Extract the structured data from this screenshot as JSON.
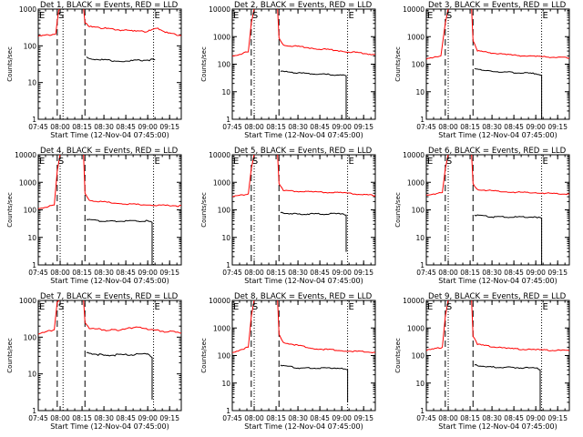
{
  "chart_data": [
    {
      "type": "line",
      "title": "Det 1, BLACK = Events, RED = LLD",
      "xlabel": "Start Time (12-Nov-04 07:45:00)",
      "ylabel": "Counts/sec",
      "y_scale": "log",
      "ylim": [
        1,
        1000
      ],
      "y_ticks": [
        "1",
        "10",
        "100",
        "1000"
      ],
      "x_ticks": [
        "07:45",
        "08:00",
        "08:15",
        "08:30",
        "08:45",
        "09:00",
        "09:15"
      ],
      "xlim": [
        "07:45",
        "09:23"
      ],
      "markers": [
        {
          "label": "E",
          "time": "07:45"
        },
        {
          "label": "S",
          "time": "07:58"
        },
        {
          "label": "E",
          "time": "09:04"
        }
      ],
      "dashed_lines": [
        "07:58",
        "08:17"
      ],
      "dotted_lines": [
        "08:02",
        "09:04"
      ],
      "series": [
        {
          "color": "#ff0000",
          "points": [
            [
              "07:45",
              180
            ],
            [
              "07:57",
              210
            ],
            [
              "07:59",
              900
            ],
            [
              "08:00",
              1200
            ],
            [
              "08:16",
              1200
            ],
            [
              "08:17",
              420
            ],
            [
              "08:20",
              330
            ],
            [
              "08:30",
              300
            ],
            [
              "08:50",
              250
            ],
            [
              "09:00",
              245
            ],
            [
              "09:06",
              300
            ],
            [
              "09:12",
              230
            ],
            [
              "09:23",
              190
            ]
          ]
        },
        {
          "color": "#000000",
          "points": [
            [
              "08:18",
              50
            ],
            [
              "08:20",
              45
            ],
            [
              "08:40",
              38
            ],
            [
              "09:05",
              42
            ]
          ]
        }
      ]
    },
    {
      "type": "line",
      "title": "Det 2, BLACK = Events, RED = LLD",
      "xlabel": "Start Time (12-Nov-04 07:45:00)",
      "ylabel": "Counts/sec",
      "y_scale": "log",
      "ylim": [
        1,
        10000
      ],
      "y_ticks": [
        "1",
        "10",
        "100",
        "1000",
        "10000"
      ],
      "x_ticks": [
        "07:45",
        "08:00",
        "08:15",
        "08:30",
        "08:45",
        "09:00",
        "09:15"
      ],
      "xlim": [
        "07:45",
        "09:23"
      ],
      "markers": [
        {
          "label": "E",
          "time": "07:45"
        },
        {
          "label": "S",
          "time": "07:58"
        },
        {
          "label": "E",
          "time": "09:04"
        }
      ],
      "dashed_lines": [
        "07:58",
        "08:17"
      ],
      "dotted_lines": [
        "08:00",
        "09:04"
      ],
      "series": [
        {
          "color": "#ff0000",
          "points": [
            [
              "07:45",
              200
            ],
            [
              "07:56",
              280
            ],
            [
              "07:58",
              3000
            ],
            [
              "08:00",
              12000
            ],
            [
              "08:16",
              12000
            ],
            [
              "08:17",
              900
            ],
            [
              "08:20",
              500
            ],
            [
              "08:40",
              380
            ],
            [
              "09:00",
              300
            ],
            [
              "09:23",
              220
            ]
          ]
        },
        {
          "color": "#000000",
          "points": [
            [
              "08:18",
              55
            ],
            [
              "08:30",
              48
            ],
            [
              "09:00",
              40
            ],
            [
              "09:03",
              38
            ],
            [
              "09:03",
              1
            ]
          ]
        }
      ]
    },
    {
      "type": "line",
      "title": "Det 3, BLACK = Events, RED = LLD",
      "xlabel": "Start Time (12-Nov-04 07:45:00)",
      "ylabel": "Counts/sec",
      "y_scale": "log",
      "ylim": [
        1,
        10000
      ],
      "y_ticks": [
        "1",
        "10",
        "100",
        "1000",
        "10000"
      ],
      "x_ticks": [
        "07:45",
        "08:00",
        "08:15",
        "08:30",
        "08:45",
        "09:00",
        "09:15"
      ],
      "xlim": [
        "07:45",
        "09:23"
      ],
      "markers": [
        {
          "label": "E",
          "time": "07:45"
        },
        {
          "label": "S",
          "time": "07:58"
        },
        {
          "label": "E",
          "time": "09:04"
        }
      ],
      "dashed_lines": [
        "07:58",
        "08:17"
      ],
      "dotted_lines": [
        "08:00",
        "09:04"
      ],
      "series": [
        {
          "color": "#ff0000",
          "points": [
            [
              "07:45",
              150
            ],
            [
              "07:55",
              200
            ],
            [
              "07:58",
              3000
            ],
            [
              "08:00",
              12000
            ],
            [
              "08:16",
              12000
            ],
            [
              "08:17",
              700
            ],
            [
              "08:20",
              300
            ],
            [
              "08:40",
              220
            ],
            [
              "09:00",
              190
            ],
            [
              "09:23",
              170
            ]
          ]
        },
        {
          "color": "#000000",
          "points": [
            [
              "08:18",
              70
            ],
            [
              "08:30",
              55
            ],
            [
              "09:00",
              45
            ],
            [
              "09:04",
              40
            ],
            [
              "09:04",
              1
            ]
          ]
        }
      ]
    },
    {
      "type": "line",
      "title": "Det 4, BLACK = Events, RED = LLD",
      "xlabel": "Start Time (12-Nov-04 07:45:00)",
      "ylabel": "Counts/sec",
      "y_scale": "log",
      "ylim": [
        1,
        10000
      ],
      "y_ticks": [
        "1",
        "10",
        "100",
        "1000",
        "10000"
      ],
      "x_ticks": [
        "07:45",
        "08:00",
        "08:15",
        "08:30",
        "08:45",
        "09:00",
        "09:15"
      ],
      "xlim": [
        "07:45",
        "09:23"
      ],
      "markers": [
        {
          "label": "E",
          "time": "07:45"
        },
        {
          "label": "S",
          "time": "07:58"
        },
        {
          "label": "E",
          "time": "09:04"
        }
      ],
      "dashed_lines": [
        "07:58",
        "08:17"
      ],
      "dotted_lines": [
        "08:00",
        "09:04"
      ],
      "series": [
        {
          "color": "#ff0000",
          "points": [
            [
              "07:45",
              110
            ],
            [
              "07:56",
              150
            ],
            [
              "07:58",
              2500
            ],
            [
              "08:00",
              12000
            ],
            [
              "08:16",
              12000
            ],
            [
              "08:17",
              400
            ],
            [
              "08:20",
              220
            ],
            [
              "08:40",
              170
            ],
            [
              "09:00",
              150
            ],
            [
              "09:23",
              140
            ]
          ]
        },
        {
          "color": "#000000",
          "points": [
            [
              "08:18",
              45
            ],
            [
              "08:30",
              38
            ],
            [
              "09:00",
              40
            ],
            [
              "09:03",
              35
            ],
            [
              "09:03",
              1
            ]
          ]
        }
      ]
    },
    {
      "type": "line",
      "title": "Det 5, BLACK = Events, RED = LLD",
      "xlabel": "Start Time (12-Nov-04 07:45:00)",
      "ylabel": "Counts/sec",
      "y_scale": "log",
      "ylim": [
        1,
        10000
      ],
      "y_ticks": [
        "1",
        "10",
        "100",
        "1000",
        "10000"
      ],
      "x_ticks": [
        "07:45",
        "08:00",
        "08:15",
        "08:30",
        "08:45",
        "09:00",
        "09:15"
      ],
      "xlim": [
        "07:45",
        "09:23"
      ],
      "markers": [
        {
          "label": "E",
          "time": "07:45"
        },
        {
          "label": "S",
          "time": "07:58"
        },
        {
          "label": "E",
          "time": "09:04"
        }
      ],
      "dashed_lines": [
        "07:58",
        "08:17"
      ],
      "dotted_lines": [
        "08:00",
        "09:04"
      ],
      "series": [
        {
          "color": "#ff0000",
          "points": [
            [
              "07:45",
              300
            ],
            [
              "07:56",
              380
            ],
            [
              "07:58",
              3000
            ],
            [
              "08:00",
              12000
            ],
            [
              "08:16",
              12000
            ],
            [
              "08:17",
              900
            ],
            [
              "08:20",
              500
            ],
            [
              "08:40",
              450
            ],
            [
              "09:00",
              420
            ],
            [
              "09:23",
              330
            ]
          ]
        },
        {
          "color": "#000000",
          "points": [
            [
              "08:18",
              80
            ],
            [
              "08:30",
              70
            ],
            [
              "09:00",
              72
            ],
            [
              "09:03",
              65
            ],
            [
              "09:03",
              3
            ]
          ]
        }
      ]
    },
    {
      "type": "line",
      "title": "Det 6, BLACK = Events, RED = LLD",
      "xlabel": "Start Time (12-Nov-04 07:45:00)",
      "ylabel": "Counts/sec",
      "y_scale": "log",
      "ylim": [
        1,
        10000
      ],
      "y_ticks": [
        "1",
        "10",
        "100",
        "1000",
        "10000"
      ],
      "x_ticks": [
        "07:45",
        "08:00",
        "08:15",
        "08:30",
        "08:45",
        "09:00",
        "09:15"
      ],
      "xlim": [
        "07:45",
        "09:23"
      ],
      "markers": [
        {
          "label": "E",
          "time": "07:45"
        },
        {
          "label": "S",
          "time": "07:58"
        },
        {
          "label": "E",
          "time": "09:04"
        }
      ],
      "dashed_lines": [
        "07:58",
        "08:17"
      ],
      "dotted_lines": [
        "08:00",
        "09:04"
      ],
      "series": [
        {
          "color": "#ff0000",
          "points": [
            [
              "07:45",
              350
            ],
            [
              "07:56",
              420
            ],
            [
              "07:58",
              3000
            ],
            [
              "08:00",
              12000
            ],
            [
              "08:16",
              12000
            ],
            [
              "08:17",
              900
            ],
            [
              "08:20",
              550
            ],
            [
              "08:40",
              450
            ],
            [
              "09:00",
              420
            ],
            [
              "09:23",
              370
            ]
          ]
        },
        {
          "color": "#000000",
          "points": [
            [
              "08:18",
              65
            ],
            [
              "08:30",
              55
            ],
            [
              "09:00",
              55
            ],
            [
              "09:04",
              50
            ],
            [
              "09:04",
              1
            ]
          ]
        }
      ]
    },
    {
      "type": "line",
      "title": "Det 7, BLACK = Events, RED = LLD",
      "xlabel": "Start Time (12-Nov-04 07:45:00)",
      "ylabel": "Counts/sec",
      "y_scale": "log",
      "ylim": [
        1,
        1000
      ],
      "y_ticks": [
        "1",
        "10",
        "100",
        "1000"
      ],
      "x_ticks": [
        "07:45",
        "08:00",
        "08:15",
        "08:30",
        "08:45",
        "09:00",
        "09:15"
      ],
      "xlim": [
        "07:45",
        "09:23"
      ],
      "markers": [
        {
          "label": "E",
          "time": "07:45"
        },
        {
          "label": "S",
          "time": "07:58"
        },
        {
          "label": "E",
          "time": "09:04"
        }
      ],
      "dashed_lines": [
        "07:58",
        "08:17"
      ],
      "dotted_lines": [
        "08:02",
        "09:04"
      ],
      "series": [
        {
          "color": "#ff0000",
          "points": [
            [
              "07:45",
              120
            ],
            [
              "07:56",
              160
            ],
            [
              "07:58",
              900
            ],
            [
              "08:00",
              1200
            ],
            [
              "08:16",
              1200
            ],
            [
              "08:17",
              250
            ],
            [
              "08:20",
              170
            ],
            [
              "08:40",
              150
            ],
            [
              "08:52",
              190
            ],
            [
              "09:00",
              160
            ],
            [
              "09:23",
              130
            ]
          ]
        },
        {
          "color": "#000000",
          "points": [
            [
              "08:18",
              38
            ],
            [
              "08:30",
              32
            ],
            [
              "09:00",
              35
            ],
            [
              "09:03",
              28
            ],
            [
              "09:03",
              2
            ]
          ]
        }
      ]
    },
    {
      "type": "line",
      "title": "Det 8, BLACK = Events, RED = LLD",
      "xlabel": "Start Time (12-Nov-04 07:45:00)",
      "ylabel": "Counts/sec",
      "y_scale": "log",
      "ylim": [
        1,
        10000
      ],
      "y_ticks": [
        "1",
        "10",
        "100",
        "1000",
        "10000"
      ],
      "x_ticks": [
        "07:45",
        "08:00",
        "08:15",
        "08:30",
        "08:45",
        "09:00",
        "09:15"
      ],
      "xlim": [
        "07:45",
        "09:23"
      ],
      "markers": [
        {
          "label": "E",
          "time": "07:45"
        },
        {
          "label": "S",
          "time": "07:58"
        },
        {
          "label": "E",
          "time": "09:04"
        }
      ],
      "dashed_lines": [
        "07:58",
        "08:17"
      ],
      "dotted_lines": [
        "08:00",
        "09:04"
      ],
      "series": [
        {
          "color": "#ff0000",
          "points": [
            [
              "07:45",
              130
            ],
            [
              "07:56",
              200
            ],
            [
              "07:58",
              2500
            ],
            [
              "08:00",
              12000
            ],
            [
              "08:16",
              12000
            ],
            [
              "08:17",
              600
            ],
            [
              "08:20",
              300
            ],
            [
              "08:40",
              180
            ],
            [
              "09:00",
              150
            ],
            [
              "09:23",
              130
            ]
          ]
        },
        {
          "color": "#000000",
          "points": [
            [
              "08:18",
              45
            ],
            [
              "08:30",
              35
            ],
            [
              "09:00",
              35
            ],
            [
              "09:04",
              30
            ],
            [
              "09:04",
              2
            ]
          ]
        }
      ]
    },
    {
      "type": "line",
      "title": "Det 9, BLACK = Events, RED = LLD",
      "xlabel": "Start Time (12-Nov-04 07:45:00)",
      "ylabel": "Counts/sec",
      "y_scale": "log",
      "ylim": [
        1,
        10000
      ],
      "y_ticks": [
        "1",
        "10",
        "100",
        "1000",
        "10000"
      ],
      "x_ticks": [
        "07:45",
        "08:00",
        "08:15",
        "08:30",
        "08:45",
        "09:00",
        "09:15"
      ],
      "xlim": [
        "07:45",
        "09:23"
      ],
      "markers": [
        {
          "label": "E",
          "time": "07:45"
        },
        {
          "label": "S",
          "time": "07:58"
        },
        {
          "label": "E",
          "time": "09:04"
        }
      ],
      "dashed_lines": [
        "07:58",
        "08:17"
      ],
      "dotted_lines": [
        "08:00",
        "09:04"
      ],
      "series": [
        {
          "color": "#ff0000",
          "points": [
            [
              "07:45",
              150
            ],
            [
              "07:56",
              200
            ],
            [
              "07:58",
              2500
            ],
            [
              "08:00",
              12000
            ],
            [
              "08:16",
              12000
            ],
            [
              "08:17",
              500
            ],
            [
              "08:20",
              250
            ],
            [
              "08:40",
              180
            ],
            [
              "09:00",
              160
            ],
            [
              "09:23",
              150
            ]
          ]
        },
        {
          "color": "#000000",
          "points": [
            [
              "08:18",
              45
            ],
            [
              "08:30",
              38
            ],
            [
              "09:00",
              35
            ],
            [
              "09:03",
              30
            ],
            [
              "09:03",
              1
            ]
          ]
        }
      ]
    }
  ]
}
